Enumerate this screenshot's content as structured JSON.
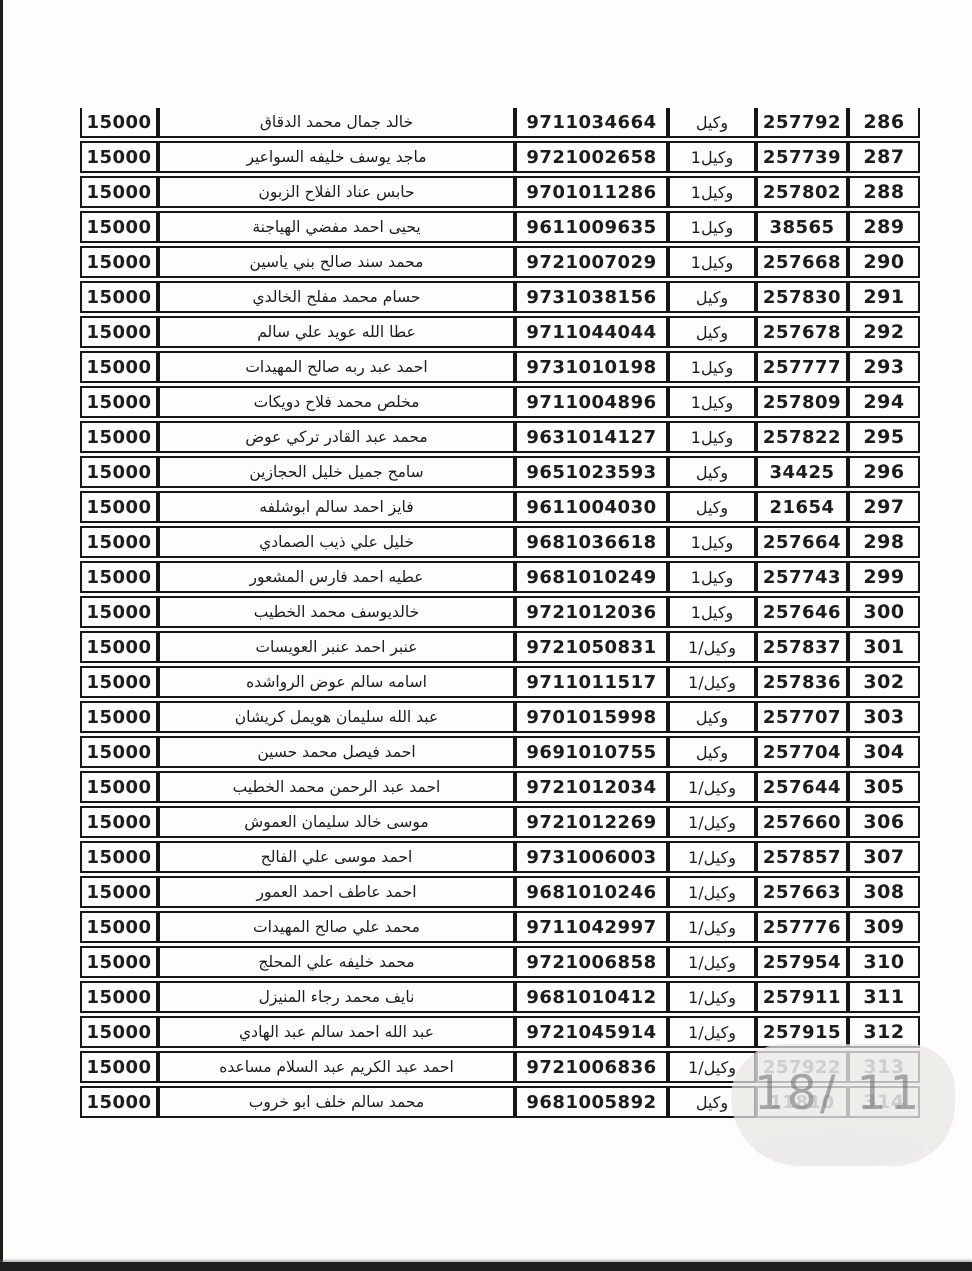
{
  "document": {
    "kind": "scanned-roster-table-page",
    "rows_range": "286-314"
  },
  "colors": {
    "paper": "#fdfdfc",
    "ink": "#1c1c1c",
    "table_border": "#161616",
    "faded_ink": "#8d8d8d",
    "scan_edge": "#1e1e1e",
    "smudge": "#e8e6e3"
  },
  "watermark": {
    "text": "18/ 11"
  },
  "table": {
    "columns": [
      {
        "key": "num",
        "name": "row-number"
      },
      {
        "key": "serial",
        "name": "serial-number"
      },
      {
        "key": "type",
        "name": "role"
      },
      {
        "key": "natid",
        "name": "national-id"
      },
      {
        "key": "name",
        "name": "full-name"
      },
      {
        "key": "amount",
        "name": "amount"
      }
    ],
    "rows": [
      {
        "num": "286",
        "serial": "257792",
        "type": "وكيل",
        "natid": "9711034664",
        "name": "خالد جمال محمد الدقاق",
        "amount": "15000",
        "faded": false
      },
      {
        "num": "287",
        "serial": "257739",
        "type": "وكيل1",
        "natid": "9721002658",
        "name": "ماجد يوسف خليفه السواعير",
        "amount": "15000",
        "faded": false
      },
      {
        "num": "288",
        "serial": "257802",
        "type": "وكيل1",
        "natid": "9701011286",
        "name": "حابس عناد الفلاح الزبون",
        "amount": "15000",
        "faded": false
      },
      {
        "num": "289",
        "serial": "38565",
        "type": "وكيل1",
        "natid": "9611009635",
        "name": "يحيى احمد مفضي الهياجنة",
        "amount": "15000",
        "faded": false
      },
      {
        "num": "290",
        "serial": "257668",
        "type": "وكيل1",
        "natid": "9721007029",
        "name": "محمد سند صالح بني ياسين",
        "amount": "15000",
        "faded": false
      },
      {
        "num": "291",
        "serial": "257830",
        "type": "وكيل",
        "natid": "9731038156",
        "name": "حسام محمد مفلح الخالدي",
        "amount": "15000",
        "faded": false
      },
      {
        "num": "292",
        "serial": "257678",
        "type": "وكيل",
        "natid": "9711044044",
        "name": "عطا الله عويد علي سالم",
        "amount": "15000",
        "faded": false
      },
      {
        "num": "293",
        "serial": "257777",
        "type": "وكيل1",
        "natid": "9731010198",
        "name": "احمد عبد ربه صالح المهيدات",
        "amount": "15000",
        "faded": false
      },
      {
        "num": "294",
        "serial": "257809",
        "type": "وكيل1",
        "natid": "9711004896",
        "name": "مخلص محمد فلاح دويكات",
        "amount": "15000",
        "faded": false
      },
      {
        "num": "295",
        "serial": "257822",
        "type": "وكيل1",
        "natid": "9631014127",
        "name": "محمد عبد القادر تركي عوض",
        "amount": "15000",
        "faded": false
      },
      {
        "num": "296",
        "serial": "34425",
        "type": "وكيل",
        "natid": "9651023593",
        "name": "سامح جميل خليل الحجازين",
        "amount": "15000",
        "faded": false
      },
      {
        "num": "297",
        "serial": "21654",
        "type": "وكيل",
        "natid": "9611004030",
        "name": "فايز احمد سالم ابوشلفه",
        "amount": "15000",
        "faded": false
      },
      {
        "num": "298",
        "serial": "257664",
        "type": "وكيل1",
        "natid": "9681036618",
        "name": "خليل علي ذيب الصمادي",
        "amount": "15000",
        "faded": false
      },
      {
        "num": "299",
        "serial": "257743",
        "type": "وكيل1",
        "natid": "9681010249",
        "name": "عطيه احمد فارس المشعور",
        "amount": "15000",
        "faded": false
      },
      {
        "num": "300",
        "serial": "257646",
        "type": "وكيل1",
        "natid": "9721012036",
        "name": "خالديوسف محمد الخطيب",
        "amount": "15000",
        "faded": false
      },
      {
        "num": "301",
        "serial": "257837",
        "type": "وكيل/1",
        "natid": "9721050831",
        "name": "عنبر احمد عنبر العويسات",
        "amount": "15000",
        "faded": false
      },
      {
        "num": "302",
        "serial": "257836",
        "type": "وكيل/1",
        "natid": "9711011517",
        "name": "اسامه سالم عوض الرواشده",
        "amount": "15000",
        "faded": false
      },
      {
        "num": "303",
        "serial": "257707",
        "type": "وكيل",
        "natid": "9701015998",
        "name": "عبد الله سليمان هويمل كريشان",
        "amount": "15000",
        "faded": false
      },
      {
        "num": "304",
        "serial": "257704",
        "type": "وكيل",
        "natid": "9691010755",
        "name": "احمد فيصل محمد حسين",
        "amount": "15000",
        "faded": false
      },
      {
        "num": "305",
        "serial": "257644",
        "type": "وكيل/1",
        "natid": "9721012034",
        "name": "احمد عبد الرحمن محمد الخطيب",
        "amount": "15000",
        "faded": false
      },
      {
        "num": "306",
        "serial": "257660",
        "type": "وكيل/1",
        "natid": "9721012269",
        "name": "موسى خالد سليمان العموش",
        "amount": "15000",
        "faded": false
      },
      {
        "num": "307",
        "serial": "257857",
        "type": "وكيل/1",
        "natid": "9731006003",
        "name": "احمد موسى علي الفالح",
        "amount": "15000",
        "faded": false
      },
      {
        "num": "308",
        "serial": "257663",
        "type": "وكيل/1",
        "natid": "9681010246",
        "name": "احمد عاطف احمد العمور",
        "amount": "15000",
        "faded": false
      },
      {
        "num": "309",
        "serial": "257776",
        "type": "وكيل/1",
        "natid": "9711042997",
        "name": "محمد علي صالح المهيدات",
        "amount": "15000",
        "faded": false
      },
      {
        "num": "310",
        "serial": "257954",
        "type": "وكيل/1",
        "natid": "9721006858",
        "name": "محمد خليفه علي المحلج",
        "amount": "15000",
        "faded": false
      },
      {
        "num": "311",
        "serial": "257911",
        "type": "وكيل/1",
        "natid": "9681010412",
        "name": "نايف محمد رجاء المنيزل",
        "amount": "15000",
        "faded": false
      },
      {
        "num": "312",
        "serial": "257915",
        "type": "وكيل/1",
        "natid": "9721045914",
        "name": "عبد الله احمد سالم عبد الهادي",
        "amount": "15000",
        "faded": false
      },
      {
        "num": "313",
        "serial": "257922",
        "type": "وكيل/1",
        "natid": "9721006836",
        "name": "احمد عبد الكريم عبد السلام مساعده",
        "amount": "15000",
        "faded": true
      },
      {
        "num": "314",
        "serial": "11810",
        "type": "وكيل",
        "natid": "9681005892",
        "name": "محمد سالم خلف ابو خروب",
        "amount": "15000",
        "faded": true
      }
    ]
  }
}
